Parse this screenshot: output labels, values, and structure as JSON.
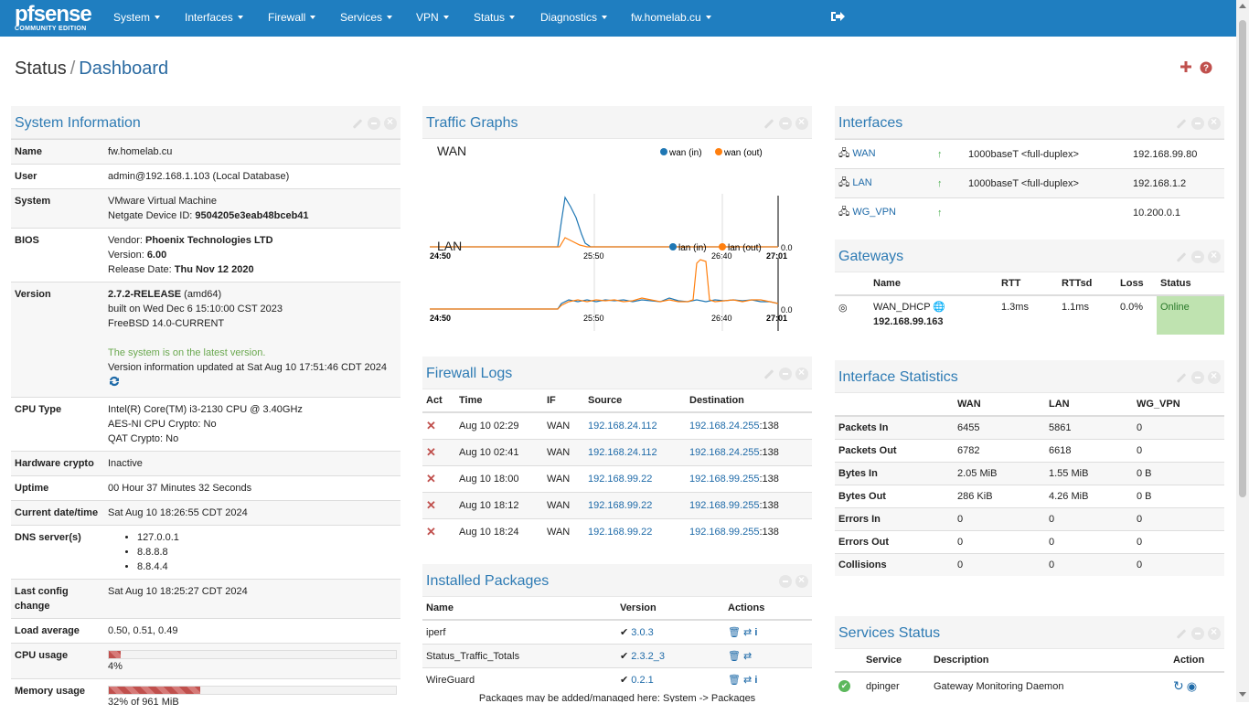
{
  "nav": {
    "logo_top": "pfsense",
    "logo_bottom": "COMMUNITY EDITION",
    "items": [
      "System",
      "Interfaces",
      "Firewall",
      "Services",
      "VPN",
      "Status",
      "Diagnostics",
      "fw.homelab.cu"
    ]
  },
  "page": {
    "title": "Status",
    "crumb": "Dashboard"
  },
  "sysinfo": {
    "title": "System Information",
    "rows": [
      {
        "k": "Name",
        "v": [
          "fw.homelab.cu"
        ]
      },
      {
        "k": "User",
        "v": [
          "admin@192.168.1.103 (Local Database)"
        ]
      },
      {
        "k": "System",
        "v": [
          "VMware Virtual Machine",
          "Netgate Device ID: ",
          "9504205e3eab48bceb41"
        ]
      },
      {
        "k": "BIOS",
        "v": [
          "Vendor: ",
          "Phoenix Technologies LTD",
          "Version: ",
          "6.00",
          "Release Date: ",
          "Thu Nov 12 2020"
        ]
      },
      {
        "k": "Version",
        "v": [
          "2.7.2-RELEASE",
          " (amd64)",
          "built on Wed Dec 6 15:10:00 CST 2023",
          "FreeBSD 14.0-CURRENT",
          "The system is on the latest version.",
          "Version information updated at Sat Aug 10 17:51:46 CDT 2024"
        ]
      },
      {
        "k": "CPU Type",
        "v": [
          "Intel(R) Core(TM) i3-2130 CPU @ 3.40GHz",
          "AES-NI CPU Crypto: No",
          "QAT Crypto: No"
        ]
      },
      {
        "k": "Hardware crypto",
        "v": [
          "Inactive"
        ]
      },
      {
        "k": "Uptime",
        "v": [
          "00 Hour 37 Minutes 32 Seconds"
        ]
      },
      {
        "k": "Current date/time",
        "v": [
          "Sat Aug 10 18:26:55 CDT 2024"
        ]
      },
      {
        "k": "DNS server(s)",
        "v": [
          "127.0.0.1",
          "8.8.8.8",
          "8.8.4.4"
        ]
      },
      {
        "k": "Last config change",
        "v": [
          "Sat Aug 10 18:25:27 CDT 2024"
        ]
      },
      {
        "k": "Load average",
        "v": [
          "0.50, 0.51, 0.49"
        ]
      },
      {
        "k": "CPU usage",
        "v": [
          "4%"
        ],
        "pct": 0.04
      },
      {
        "k": "Memory usage",
        "v": [
          "32% of 961 MiB"
        ],
        "pct": 0.32
      }
    ]
  },
  "traffic": {
    "title": "Traffic Graphs",
    "wan": {
      "name": "WAN",
      "in": "wan (in)",
      "out": "wan (out)",
      "ticks": [
        "24:50",
        "25:50",
        "26:40",
        "27:01"
      ],
      "zero": "0.0"
    },
    "lan": {
      "name": "LAN",
      "in": "lan (in)",
      "out": "lan (out)",
      "ticks": [
        "24:50",
        "25:50",
        "26:40",
        "27:01"
      ],
      "zero": "0.0"
    }
  },
  "fwlogs": {
    "title": "Firewall Logs",
    "cols": [
      "Act",
      "Time",
      "IF",
      "Source",
      "Destination"
    ],
    "rows": [
      [
        "Aug 10 02:29",
        "WAN",
        "192.168.24.112",
        "192.168.24.255",
        ":138"
      ],
      [
        "Aug 10 02:41",
        "WAN",
        "192.168.24.112",
        "192.168.24.255",
        ":138"
      ],
      [
        "Aug 10 18:00",
        "WAN",
        "192.168.99.22",
        "192.168.99.255",
        ":138"
      ],
      [
        "Aug 10 18:12",
        "WAN",
        "192.168.99.22",
        "192.168.99.255",
        ":138"
      ],
      [
        "Aug 10 18:24",
        "WAN",
        "192.168.99.22",
        "192.168.99.255",
        ":138"
      ]
    ]
  },
  "packages": {
    "title": "Installed Packages",
    "cols": [
      "Name",
      "Version",
      "Actions"
    ],
    "rows": [
      [
        "iperf",
        "3.0.3"
      ],
      [
        "Status_Traffic_Totals",
        "2.3.2_3"
      ],
      [
        "WireGuard",
        "0.2.1"
      ]
    ],
    "footer": "Packages may be added/managed here: System -> Packages"
  },
  "interfaces": {
    "title": "Interfaces",
    "rows": [
      [
        "WAN",
        "1000baseT <full-duplex>",
        "192.168.99.80"
      ],
      [
        "LAN",
        "1000baseT <full-duplex>",
        "192.168.1.2"
      ],
      [
        "WG_VPN",
        "",
        "10.200.0.1"
      ]
    ]
  },
  "gateways": {
    "title": "Gateways",
    "cols": [
      "Name",
      "RTT",
      "RTTsd",
      "Loss",
      "Status"
    ],
    "row": {
      "name": "WAN_DHCP",
      "ip": "192.168.99.163",
      "rtt": "1.3ms",
      "rttsd": "1.1ms",
      "loss": "0.0%",
      "status": "Online"
    }
  },
  "ifstats": {
    "title": "Interface Statistics",
    "cols": [
      "WAN",
      "LAN",
      "WG_VPN"
    ],
    "rows": [
      [
        "Packets In",
        "6455",
        "5861",
        "0"
      ],
      [
        "Packets Out",
        "6782",
        "6618",
        "0"
      ],
      [
        "Bytes In",
        "2.05 MiB",
        "1.55 MiB",
        "0 B"
      ],
      [
        "Bytes Out",
        "286 KiB",
        "4.26 MiB",
        "0 B"
      ],
      [
        "Errors In",
        "0",
        "0",
        "0"
      ],
      [
        "Errors Out",
        "0",
        "0",
        "0"
      ],
      [
        "Collisions",
        "0",
        "0",
        "0"
      ]
    ]
  },
  "services": {
    "title": "Services Status",
    "cols": [
      "Service",
      "Description",
      "Action"
    ],
    "rows": [
      [
        "dpinger",
        "Gateway Monitoring Daemon"
      ]
    ]
  },
  "colors": {
    "nav": "#1f7ec0",
    "accent": "#2e7bb4",
    "in": "#1f77b4",
    "out": "#ff7f0e",
    "danger": "#c0504d",
    "ok": "#4caf50"
  }
}
